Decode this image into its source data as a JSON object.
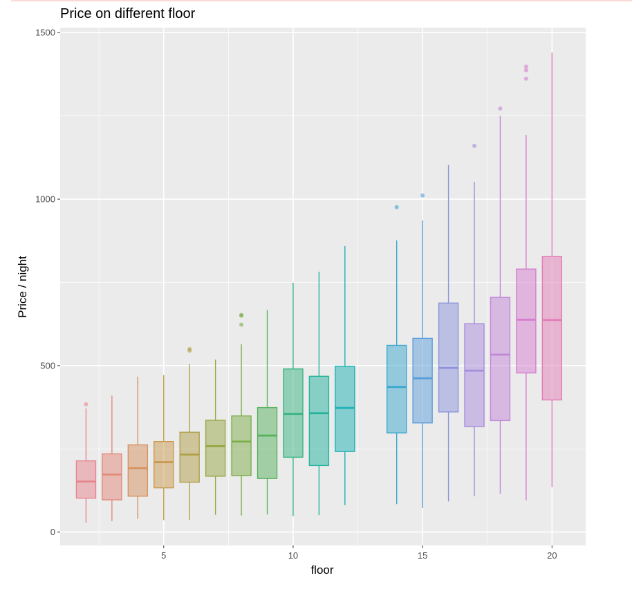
{
  "chart_data": {
    "type": "boxplot",
    "title": "Price on different floor",
    "xlabel": "floor",
    "ylabel": "Price / night",
    "xlim": [
      1.0,
      21.3
    ],
    "ylim": [
      -40,
      1515
    ],
    "x_ticks": [
      5,
      10,
      15,
      20
    ],
    "y_ticks": [
      0,
      500,
      1000,
      1500
    ],
    "grid": true,
    "legend": "none",
    "boxes": [
      {
        "floor": 2,
        "lower_whisker": 28,
        "q1": 102,
        "median": 152,
        "q3": 214,
        "upper_whisker": 372,
        "outliers": [
          384
        ],
        "color": "#e7858f"
      },
      {
        "floor": 3,
        "lower_whisker": 33,
        "q1": 97,
        "median": 173,
        "q3": 235,
        "upper_whisker": 410,
        "outliers": [],
        "color": "#e28a7a"
      },
      {
        "floor": 4,
        "lower_whisker": 40,
        "q1": 108,
        "median": 192,
        "q3": 262,
        "upper_whisker": 467,
        "outliers": [],
        "color": "#d6925f"
      },
      {
        "floor": 5,
        "lower_whisker": 36,
        "q1": 133,
        "median": 210,
        "q3": 272,
        "upper_whisker": 472,
        "outliers": [],
        "color": "#c99a50"
      },
      {
        "floor": 6,
        "lower_whisker": 37,
        "q1": 150,
        "median": 233,
        "q3": 300,
        "upper_whisker": 505,
        "outliers": [
          545,
          550
        ],
        "color": "#b0a048"
      },
      {
        "floor": 7,
        "lower_whisker": 52,
        "q1": 168,
        "median": 258,
        "q3": 336,
        "upper_whisker": 518,
        "outliers": [],
        "color": "#97a845"
      },
      {
        "floor": 8,
        "lower_whisker": 50,
        "q1": 170,
        "median": 272,
        "q3": 349,
        "upper_whisker": 564,
        "outliers": [
          623,
          650,
          652
        ],
        "color": "#7cae49"
      },
      {
        "floor": 9,
        "lower_whisker": 53,
        "q1": 161,
        "median": 290,
        "q3": 374,
        "upper_whisker": 667,
        "outliers": [],
        "color": "#58b25e"
      },
      {
        "floor": 10,
        "lower_whisker": 48,
        "q1": 225,
        "median": 355,
        "q3": 490,
        "upper_whisker": 749,
        "outliers": [],
        "color": "#38b383"
      },
      {
        "floor": 11,
        "lower_whisker": 51,
        "q1": 200,
        "median": 357,
        "q3": 468,
        "upper_whisker": 782,
        "outliers": [],
        "color": "#23b39d"
      },
      {
        "floor": 12,
        "lower_whisker": 81,
        "q1": 242,
        "median": 373,
        "q3": 498,
        "upper_whisker": 859,
        "outliers": [],
        "color": "#20b1b5"
      },
      {
        "floor": 14,
        "lower_whisker": 84,
        "q1": 298,
        "median": 436,
        "q3": 561,
        "upper_whisker": 876,
        "outliers": [
          976
        ],
        "color": "#3ba7cd"
      },
      {
        "floor": 15,
        "lower_whisker": 72,
        "q1": 328,
        "median": 462,
        "q3": 582,
        "upper_whisker": 936,
        "outliers": [
          1011
        ],
        "color": "#5b9ddb"
      },
      {
        "floor": 16,
        "lower_whisker": 92,
        "q1": 361,
        "median": 493,
        "q3": 688,
        "upper_whisker": 1102,
        "outliers": [],
        "color": "#8b93db"
      },
      {
        "floor": 17,
        "lower_whisker": 108,
        "q1": 317,
        "median": 485,
        "q3": 626,
        "upper_whisker": 1052,
        "outliers": [
          1160
        ],
        "color": "#a78bdc"
      },
      {
        "floor": 18,
        "lower_whisker": 115,
        "q1": 335,
        "median": 533,
        "q3": 705,
        "upper_whisker": 1250,
        "outliers": [
          1272
        ],
        "color": "#c286d8"
      },
      {
        "floor": 19,
        "lower_whisker": 96,
        "q1": 478,
        "median": 638,
        "q3": 790,
        "upper_whisker": 1193,
        "outliers": [
          1362,
          1387,
          1398
        ],
        "color": "#d57ecf"
      },
      {
        "floor": 20,
        "lower_whisker": 135,
        "q1": 397,
        "median": 637,
        "q3": 828,
        "upper_whisker": 1440,
        "outliers": [],
        "color": "#e27bb6"
      }
    ]
  }
}
